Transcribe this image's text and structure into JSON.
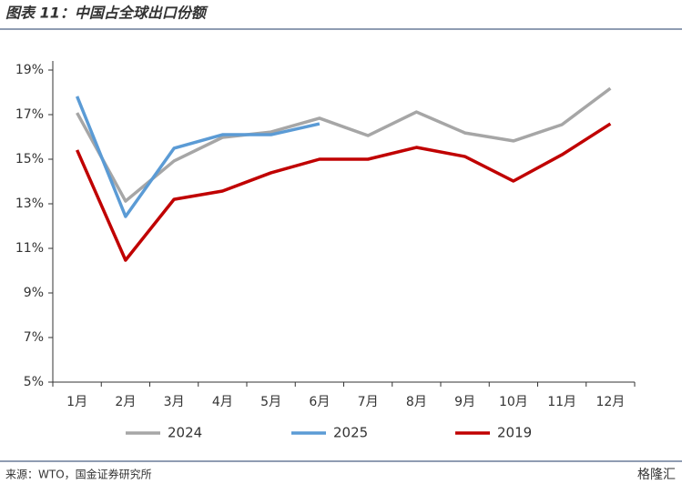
{
  "chart_data": {
    "type": "line",
    "title": "图表 11：中国占全球出口份额",
    "source": "来源：WTO，国金证券研究所",
    "watermark": "格隆汇",
    "categories": [
      "1月",
      "2月",
      "3月",
      "4月",
      "5月",
      "6月",
      "7月",
      "8月",
      "9月",
      "10月",
      "11月",
      "12月"
    ],
    "series": [
      {
        "name": "2024",
        "color": "#a6a6a6",
        "values": [
          17.08,
          13.12,
          14.92,
          15.98,
          16.22,
          16.84,
          16.06,
          17.12,
          16.18,
          15.82,
          16.55,
          18.18
        ]
      },
      {
        "name": "2025",
        "color": "#5b9bd5",
        "values": [
          17.82,
          12.43,
          15.49,
          16.1,
          16.1,
          16.59,
          null,
          null,
          null,
          null,
          null,
          null
        ]
      },
      {
        "name": "2019",
        "color": "#c00000",
        "values": [
          15.41,
          10.47,
          13.2,
          13.57,
          14.39,
          15.0,
          15.0,
          15.53,
          15.12,
          14.02,
          15.2,
          16.59
        ]
      }
    ],
    "ylim": [
      5,
      19
    ],
    "yticks": [
      {
        "value": 5,
        "label": "5%"
      },
      {
        "value": 7,
        "label": "7%"
      },
      {
        "value": 9,
        "label": "9%"
      },
      {
        "value": 11,
        "label": "11%"
      },
      {
        "value": 13,
        "label": "13%"
      },
      {
        "value": 15,
        "label": "15%"
      },
      {
        "value": 17,
        "label": "17%"
      },
      {
        "value": 19,
        "label": "19%"
      }
    ],
    "grid": false,
    "legend": "bottom"
  }
}
